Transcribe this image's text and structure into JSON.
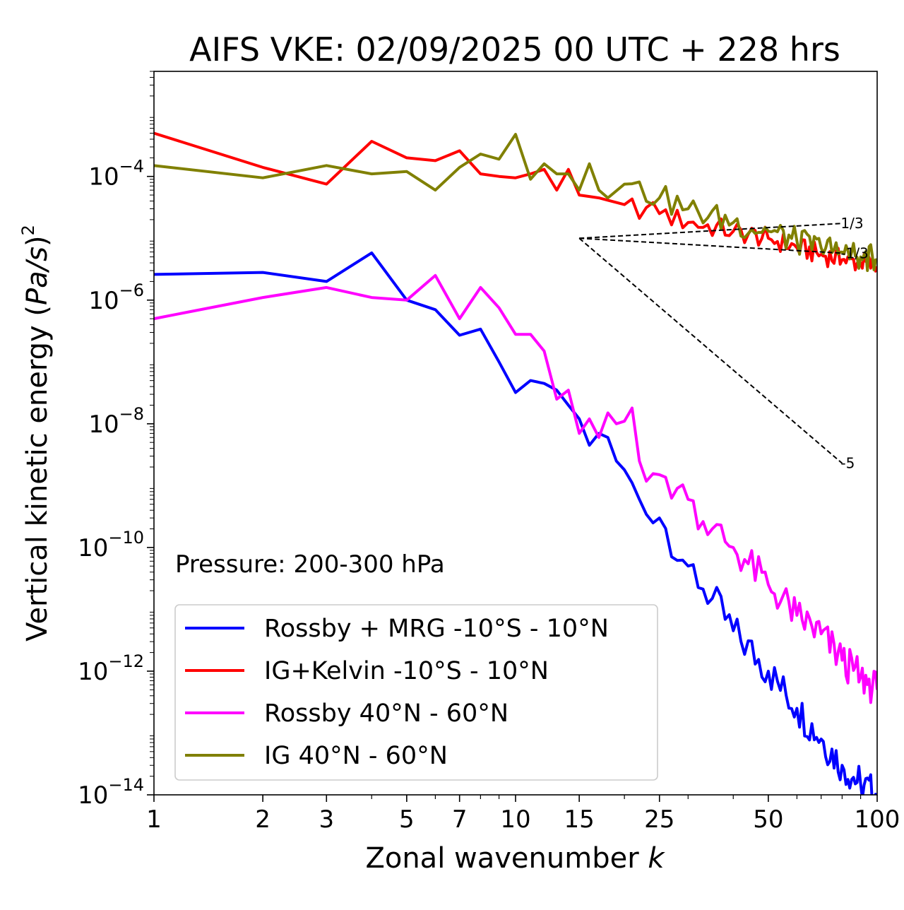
{
  "chart_data": {
    "type": "line",
    "title": "AIFS VKE: 02/09/2025 00 UTC + 228 hrs",
    "xlabel": "Zonal wavenumber k",
    "ylabel": "Vertical kinetic energy (Pa/s)^2",
    "xscale": "log",
    "yscale": "log",
    "xlim": [
      1,
      100
    ],
    "ylim": [
      1e-14,
      0.005
    ],
    "xticks": [
      1,
      2,
      3,
      5,
      7,
      10,
      15,
      25,
      50,
      100
    ],
    "xtick_labels": [
      "1",
      "2",
      "3",
      "5",
      "7",
      "10",
      "15",
      "25",
      "50",
      "100"
    ],
    "yticks": [
      {
        "value": 0.0001,
        "base": "10",
        "exp": "−4"
      },
      {
        "value": 1e-06,
        "base": "10",
        "exp": "−6"
      },
      {
        "value": 1e-08,
        "base": "10",
        "exp": "−8"
      },
      {
        "value": 1e-10,
        "base": "10",
        "exp": "−10"
      },
      {
        "value": 1e-12,
        "base": "10",
        "exp": "−12"
      },
      {
        "value": 1e-14,
        "base": "10",
        "exp": "−14"
      }
    ],
    "annotation": "Pressure: 200-300 hPa",
    "legend_position": "lower-left",
    "series": [
      {
        "name": "Rossby + MRG -10°S - 10°N",
        "color": "#0000ff",
        "anchors": [
          [
            1,
            2.6e-06
          ],
          [
            2,
            2.8e-06
          ],
          [
            3,
            2e-06
          ],
          [
            4,
            5.8e-06
          ],
          [
            5,
            1e-06
          ],
          [
            6,
            7e-07
          ],
          [
            7,
            2.7e-07
          ],
          [
            8,
            3.4e-07
          ],
          [
            9,
            1e-07
          ],
          [
            10,
            3.2e-08
          ],
          [
            11,
            5e-08
          ],
          [
            12,
            4.5e-08
          ],
          [
            13,
            3.5e-08
          ],
          [
            14,
            2e-08
          ],
          [
            15,
            1.2e-08
          ],
          [
            16,
            4.5e-09
          ],
          [
            17,
            7e-09
          ],
          [
            18,
            6e-09
          ],
          [
            19,
            2.5e-09
          ],
          [
            20,
            1.8e-09
          ],
          [
            22,
            6e-10
          ],
          [
            24,
            2.5e-10
          ],
          [
            25,
            3e-10
          ],
          [
            30,
            5e-11
          ],
          [
            35,
            1.5e-11
          ],
          [
            40,
            4.5e-12
          ],
          [
            50,
            1e-12
          ],
          [
            60,
            2.5e-13
          ],
          [
            70,
            8e-14
          ],
          [
            80,
            3e-14
          ],
          [
            90,
            1.5e-14
          ],
          [
            100,
            1e-14
          ]
        ],
        "jitter": 0.6
      },
      {
        "name": "IG+Kelvin -10°S - 10°N",
        "color": "#ff0000",
        "anchors": [
          [
            1,
            0.0005
          ],
          [
            2,
            0.00014
          ],
          [
            3,
            7.5e-05
          ],
          [
            4,
            0.00037
          ],
          [
            5,
            0.0002
          ],
          [
            6,
            0.00018
          ],
          [
            7,
            0.00026
          ],
          [
            8,
            0.00011
          ],
          [
            9,
            0.0001
          ],
          [
            10,
            9.5e-05
          ],
          [
            11,
            0.00011
          ],
          [
            12,
            0.00013
          ],
          [
            13,
            6e-05
          ],
          [
            14,
            0.00013
          ],
          [
            15,
            5e-05
          ],
          [
            17,
            4.5e-05
          ],
          [
            20,
            3.5e-05
          ],
          [
            25,
            2.5e-05
          ],
          [
            30,
            1.8e-05
          ],
          [
            40,
            1.3e-05
          ],
          [
            50,
            1e-05
          ],
          [
            60,
            7e-06
          ],
          [
            70,
            5.5e-06
          ],
          [
            80,
            4.5e-06
          ],
          [
            90,
            4e-06
          ],
          [
            100,
            3.5e-06
          ]
        ],
        "jitter": 0.35
      },
      {
        "name": "Rossby 40°N - 60°N",
        "color": "#ff00ff",
        "anchors": [
          [
            1,
            5e-07
          ],
          [
            2,
            1.1e-06
          ],
          [
            3,
            1.6e-06
          ],
          [
            4,
            1.1e-06
          ],
          [
            5,
            1e-06
          ],
          [
            6,
            2.5e-06
          ],
          [
            7,
            5e-07
          ],
          [
            8,
            1.6e-06
          ],
          [
            9,
            7.5e-07
          ],
          [
            10,
            2.8e-07
          ],
          [
            11,
            2.8e-07
          ],
          [
            12,
            1.5e-07
          ],
          [
            13,
            2.5e-08
          ],
          [
            14,
            3.5e-08
          ],
          [
            15,
            7e-09
          ],
          [
            16,
            1.2e-08
          ],
          [
            17,
            6e-09
          ],
          [
            18,
            1.5e-08
          ],
          [
            19,
            1e-08
          ],
          [
            20,
            1.1e-08
          ],
          [
            21,
            1.8e-08
          ],
          [
            22,
            2.5e-09
          ],
          [
            25,
            1.5e-09
          ],
          [
            30,
            6e-10
          ],
          [
            35,
            2e-10
          ],
          [
            40,
            1e-10
          ],
          [
            50,
            2.5e-11
          ],
          [
            60,
            8e-12
          ],
          [
            70,
            4e-12
          ],
          [
            80,
            1.5e-12
          ],
          [
            90,
            8e-13
          ],
          [
            100,
            5e-13
          ]
        ],
        "jitter": 0.6
      },
      {
        "name": "IG 40°N - 60°N",
        "color": "#808000",
        "anchors": [
          [
            1,
            0.00015
          ],
          [
            2,
            9.5e-05
          ],
          [
            3,
            0.00015
          ],
          [
            4,
            0.00011
          ],
          [
            5,
            0.00012
          ],
          [
            6,
            6e-05
          ],
          [
            7,
            0.00014
          ],
          [
            8,
            0.00023
          ],
          [
            9,
            0.00019
          ],
          [
            10,
            0.00048
          ],
          [
            11,
            9e-05
          ],
          [
            12,
            0.00016
          ],
          [
            13,
            0.00011
          ],
          [
            14,
            0.00011
          ],
          [
            15,
            6e-05
          ],
          [
            16,
            0.00016
          ],
          [
            17,
            6e-05
          ],
          [
            18,
            4.5e-05
          ],
          [
            20,
            7.5e-05
          ],
          [
            25,
            4.5e-05
          ],
          [
            30,
            3e-05
          ],
          [
            40,
            1.8e-05
          ],
          [
            50,
            1.3e-05
          ],
          [
            60,
            9e-06
          ],
          [
            70,
            7e-06
          ],
          [
            80,
            6e-06
          ],
          [
            90,
            5e-06
          ],
          [
            100,
            4.5e-06
          ]
        ],
        "jitter": 0.45
      }
    ],
    "reference_lines": [
      {
        "label": "1/3",
        "x": [
          15,
          80
        ],
        "y": [
          1e-05,
          1.74e-05
        ]
      },
      {
        "label": "-1/3",
        "x": [
          15,
          80
        ],
        "y": [
          1e-05,
          5.74e-06
        ]
      },
      {
        "label": "-5",
        "x": [
          15,
          80
        ],
        "y": [
          1e-05,
          2.3e-09
        ]
      }
    ]
  }
}
